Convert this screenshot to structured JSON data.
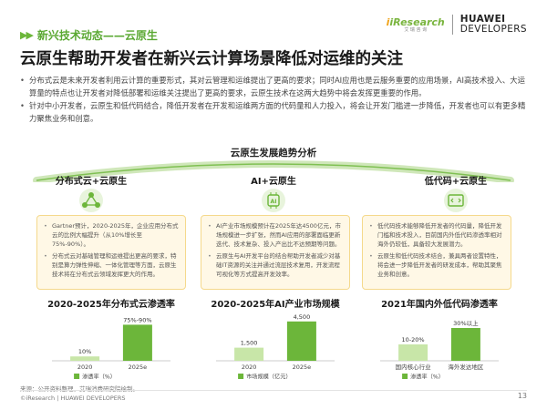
{
  "section": {
    "tag": "新兴技术动态——云原生"
  },
  "logos": {
    "iresearch_main": "iResearch",
    "iresearch_sub": "艾 瑞 咨 询",
    "huawei_line1": "HUAWEI",
    "huawei_line2": "DEVELOPERS"
  },
  "title": "云原生帮助开发者在新兴云计算场景降低对运维的关注",
  "bullets": [
    "分布式云是未来开发者利用云计算的重要形式，其对云管理和运维提出了更高的要求；同时AI应用也是云服务重要的应用场景，AI高技术投入、大运算量的特点也让开发者对降低部署和运维关注提出了更高的要求，云原生技术在这两大趋势中将会发挥更重要的作用。",
    "针对中小开发者，云原生和低代码结合，降低开发者在开发和运维两方面的代码量和人力投入，将会让开发门槛进一步降低，开发者也可以有更多精力聚焦业务和创意。"
  ],
  "diagram_title": "云原生发展趋势分析",
  "columns": [
    {
      "title": "分布式云+云原生",
      "icon": "network-icon",
      "points": [
        "Gartner预计，2020-2025年，企业应用分布式云的比例大幅提升（从10%增长至75%-90%）。",
        "分布式云对基础管理和运维提出更高的要求，特别是算力弹性伸缩、一体化管理等方面，云原生技术将在分布式云领域发挥更大的作用。"
      ],
      "chart_title": "2020-2025年分布式云渗透率",
      "legend": "渗透率（%）"
    },
    {
      "title": "AI+云原生",
      "icon": "ai-chip-icon",
      "points": [
        "AI产业市场规模预计在2025年达4500亿元，市场规模进一步扩张，然而AI应用的部署面临更新迭代、技术复杂、投入产出比不达预期等问题。",
        "云原生与AI开发平台的结合帮助开发者减少对基础IT资源的关注并通过流层技术复用，开发流程可视化等方式提高开发效率。"
      ],
      "chart_title": "2020-2025年AI产业市场规模",
      "legend": "市场规模（亿元）"
    },
    {
      "title": "低代码+云原生",
      "icon": "code-icon",
      "points": [
        "低代码技术能够降低开发者的代码量，降低开发门槛和技术投入，目前国内外低代码渗透率相对海外仍较低，具备较大发展潜力。",
        "云原生和低代码技术结合，兼具两者设置特性，将会进一步降低开发者的研发成本，帮助其聚焦业务和创意。"
      ],
      "chart_title": "2021年国内外低代码渗透率",
      "legend": "渗透率（%）"
    }
  ],
  "chart_data": [
    {
      "type": "bar",
      "title": "2020-2025年分布式云渗透率",
      "categories": [
        "2020",
        "2025e"
      ],
      "values": [
        10,
        82.5
      ],
      "labels": [
        "10%",
        "75%-90%"
      ],
      "ylabel": "渗透率（%）",
      "ylim": [
        0,
        100
      ]
    },
    {
      "type": "bar",
      "title": "2020-2025年AI产业市场规模",
      "categories": [
        "2020",
        "2025e"
      ],
      "values": [
        1500,
        4500
      ],
      "labels": [
        "1,500",
        "4,500"
      ],
      "ylabel": "市场规模（亿元）",
      "ylim": [
        0,
        5000
      ]
    },
    {
      "type": "bar",
      "title": "2021年国内外低代码渗透率",
      "categories": [
        "国内核心行业",
        "海外发达地区"
      ],
      "values": [
        15,
        30
      ],
      "labels": [
        "10-20%",
        "30%以上"
      ],
      "ylabel": "渗透率（%）",
      "ylim": [
        0,
        40
      ]
    }
  ],
  "source": "来源：公开资料整理，艾瑞消费研究院绘制。",
  "footer": "©iResearch | HUAWEI DEVELOPERS",
  "page_number": "13",
  "colors": {
    "green": "#6cb63a",
    "light_green": "#c8e6a8",
    "box_bg": "#fff8e6",
    "box_border": "#f5d98c"
  }
}
